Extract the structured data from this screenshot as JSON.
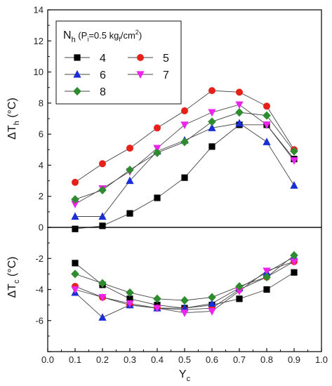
{
  "chart_data": [
    {
      "type": "line",
      "panel": "top",
      "ylabel": "ΔT_h (°C)",
      "ylabel_main": "ΔT",
      "ylabel_sub": "h",
      "ylabel_unit": "(°C)",
      "ylim": [
        0,
        14
      ],
      "yticks": [
        0,
        2,
        4,
        6,
        8,
        10,
        12,
        14
      ],
      "ytick_labels": [
        "0",
        "2",
        "4",
        "6",
        "8",
        "10",
        "12",
        "14"
      ],
      "x": [
        0.1,
        0.2,
        0.3,
        0.4,
        0.5,
        0.6,
        0.7,
        0.8,
        0.9
      ],
      "legend_title": "N_h (P_i=0.5 kg_f/cm²)",
      "legend_title_parts": {
        "n": "N",
        "n_sub": "h",
        "open": " (P",
        "p_sub": "i",
        "mid": "=0.5 kg",
        "kg_sub": "f",
        "unit": "/cm",
        "sup": "2",
        "close": ")"
      },
      "legend_placement": "top-left",
      "series": [
        {
          "name": "4",
          "color": "#000000",
          "marker": "square",
          "values": [
            -0.1,
            0.1,
            0.9,
            1.9,
            3.2,
            5.2,
            6.6,
            6.6,
            4.4
          ]
        },
        {
          "name": "5",
          "color": "#e8201a",
          "marker": "circle",
          "values": [
            2.9,
            4.1,
            5.1,
            6.4,
            7.5,
            8.8,
            8.7,
            7.8,
            5.0
          ]
        },
        {
          "name": "6",
          "color": "#1a2ed8",
          "marker": "triangle-up",
          "values": [
            0.7,
            0.7,
            3.0,
            4.9,
            5.6,
            6.4,
            6.7,
            5.5,
            2.7
          ]
        },
        {
          "name": "7",
          "color": "#ee22ee",
          "marker": "triangle-down",
          "values": [
            1.5,
            2.5,
            3.6,
            5.1,
            6.6,
            7.4,
            7.9,
            6.6,
            4.3
          ]
        },
        {
          "name": "8",
          "color": "#2e8b2e",
          "marker": "diamond",
          "values": [
            1.8,
            2.4,
            3.7,
            4.8,
            5.5,
            6.8,
            7.4,
            7.2,
            4.9
          ]
        }
      ]
    },
    {
      "type": "line",
      "panel": "bottom",
      "ylabel": "ΔT_c (°C)",
      "ylabel_main": "ΔT",
      "ylabel_sub": "c",
      "ylabel_unit": "(°C)",
      "ylim": [
        -8,
        0
      ],
      "yticks": [
        -8,
        -6,
        -4,
        -2,
        0
      ],
      "ytick_labels": [
        "-6",
        "-4",
        "-2"
      ],
      "xlabel": "Y_c",
      "xlabel_main": "Y",
      "xlabel_sub": "c",
      "xlim": [
        0.0,
        1.0
      ],
      "xticks": [
        0.0,
        0.1,
        0.2,
        0.3,
        0.4,
        0.5,
        0.6,
        0.7,
        0.8,
        0.9,
        1.0
      ],
      "xtick_labels": [
        "0.0",
        "0.1",
        "0.2",
        "0.3",
        "0.4",
        "0.5",
        "0.6",
        "0.7",
        "0.8",
        "0.9",
        "1.0"
      ],
      "x": [
        0.1,
        0.2,
        0.3,
        0.4,
        0.5,
        0.6,
        0.7,
        0.8,
        0.9
      ],
      "series": [
        {
          "name": "4",
          "color": "#000000",
          "marker": "square",
          "values": [
            -2.3,
            -3.7,
            -4.6,
            -5.0,
            -5.2,
            -5.0,
            -4.6,
            -4.0,
            -2.9
          ]
        },
        {
          "name": "5",
          "color": "#e8201a",
          "marker": "circle",
          "values": [
            -3.8,
            -4.5,
            -5.0,
            -5.2,
            -5.3,
            -5.2,
            -4.0,
            -3.2,
            -2.2
          ]
        },
        {
          "name": "6",
          "color": "#1a2ed8",
          "marker": "triangle-up",
          "values": [
            -4.2,
            -5.8,
            -5.0,
            -5.2,
            -5.2,
            -4.9,
            -3.9,
            -2.9,
            -1.9
          ]
        },
        {
          "name": "7",
          "color": "#ee22ee",
          "marker": "triangle-down",
          "values": [
            -4.0,
            -4.5,
            -4.9,
            -5.2,
            -5.5,
            -5.4,
            -4.1,
            -2.8,
            -2.2
          ]
        },
        {
          "name": "8",
          "color": "#2e8b2e",
          "marker": "diamond",
          "values": [
            -3.0,
            -3.6,
            -4.2,
            -4.6,
            -4.7,
            -4.5,
            -3.8,
            -3.2,
            -1.8
          ]
        }
      ]
    }
  ]
}
